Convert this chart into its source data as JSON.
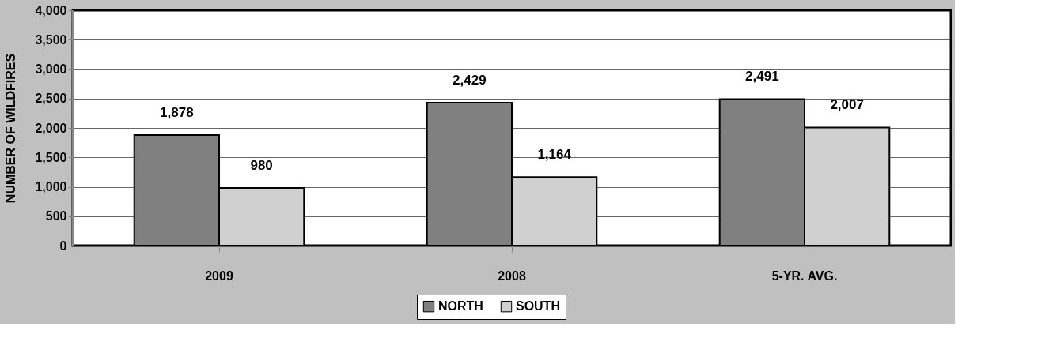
{
  "chart_data": {
    "type": "bar",
    "ylabel": "NUMBER OF WILDFIRES",
    "categories": [
      "2009",
      "2008",
      "5-YR. AVG."
    ],
    "series": [
      {
        "name": "NORTH",
        "color": "#808080",
        "values": [
          1878,
          2429,
          2491
        ],
        "value_labels": [
          "1,878",
          "2,429",
          "2,491"
        ]
      },
      {
        "name": "SOUTH",
        "color": "#d0d0d0",
        "values": [
          980,
          1164,
          2007
        ],
        "value_labels": [
          "980",
          "1,164",
          "2,007"
        ]
      }
    ],
    "ylim": [
      0,
      4000
    ],
    "yticks": [
      0,
      {
        "value": 500,
        "label": "500"
      },
      {
        "value": 1000,
        "label": "1,000"
      },
      {
        "value": 1500,
        "label": "1,500"
      },
      {
        "value": 2000,
        "label": "2,000"
      },
      {
        "value": 2500,
        "label": "2,500"
      },
      {
        "value": 3000,
        "label": "3,000"
      },
      {
        "value": 3500,
        "label": "3,500"
      },
      {
        "value": 4000,
        "label": "4,000"
      }
    ],
    "grid": "y",
    "legend": "bottom"
  }
}
